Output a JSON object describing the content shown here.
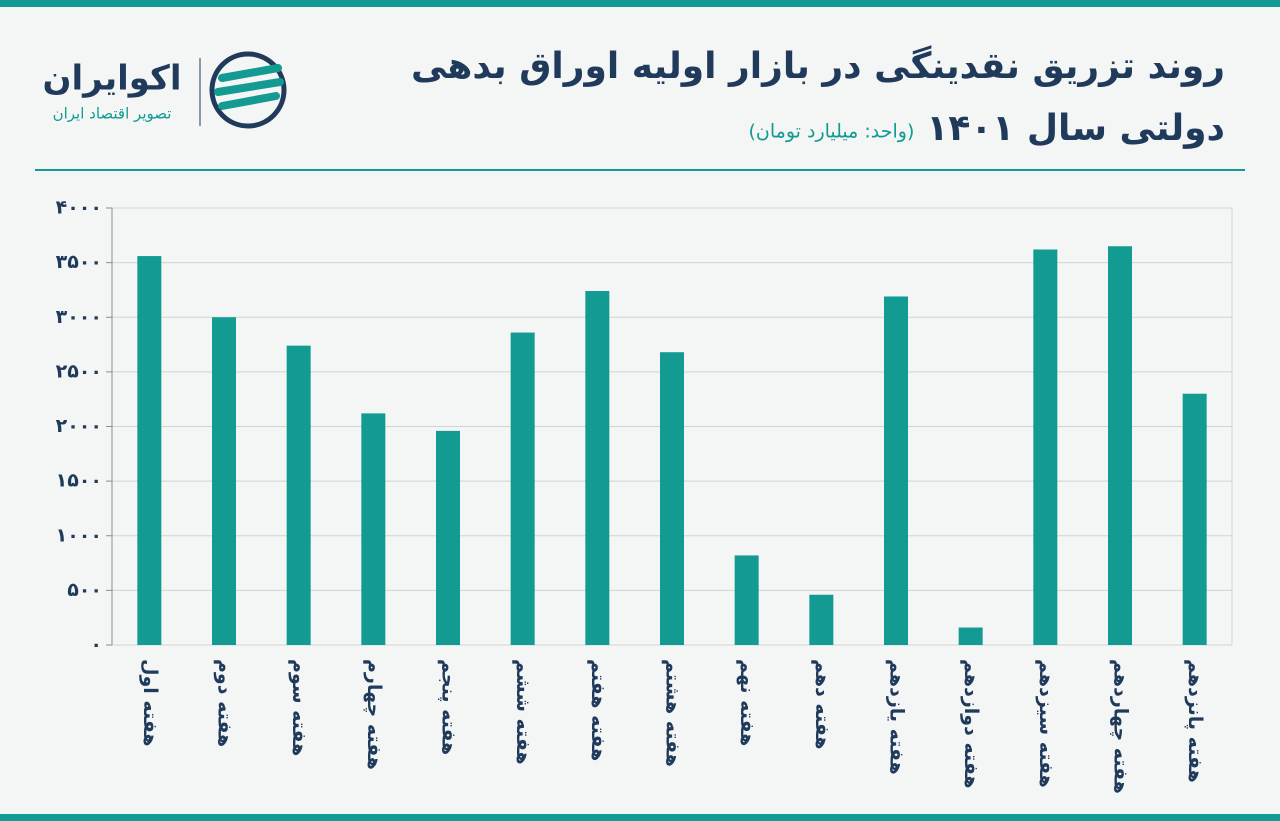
{
  "brand": {
    "name": "اکوایران",
    "tagline": "تصویر اقتصاد ایران"
  },
  "chart_data": {
    "type": "bar",
    "title": [
      "روند تزریق نقدینگی در بازار اولیه اوراق بدهی",
      "دولتی سال ۱۴۰۱"
    ],
    "subtitle": "(واحد: میلیارد تومان)",
    "categories": [
      "هفته اول",
      "هفته دوم",
      "هفته سوم",
      "هفته چهارم",
      "هفته پنجم",
      "هفته ششم",
      "هفته هفتم",
      "هفته هشتم",
      "هفته نهم",
      "هفته دهم",
      "هفته یازدهم",
      "هفته دوازدهم",
      "هفته سیزدهم",
      "هفته چهاردهم",
      "هفته پانزدهم"
    ],
    "values": [
      3560,
      3000,
      2740,
      2120,
      1960,
      2860,
      3240,
      2680,
      820,
      460,
      3190,
      160,
      3620,
      3650,
      2300
    ],
    "color": "#139a93",
    "ylim": [
      0,
      4000
    ],
    "yticks": [
      {
        "value": 0,
        "label": "۰"
      },
      {
        "value": 500,
        "label": "۵۰۰"
      },
      {
        "value": 1000,
        "label": "۱۰۰۰"
      },
      {
        "value": 1500,
        "label": "۱۵۰۰"
      },
      {
        "value": 2000,
        "label": "۲۰۰۰"
      },
      {
        "value": 2500,
        "label": "۲۵۰۰"
      },
      {
        "value": 3000,
        "label": "۳۰۰۰"
      },
      {
        "value": 3500,
        "label": "۳۵۰۰"
      },
      {
        "value": 4000,
        "label": "۴۰۰۰"
      }
    ],
    "grid": true
  }
}
